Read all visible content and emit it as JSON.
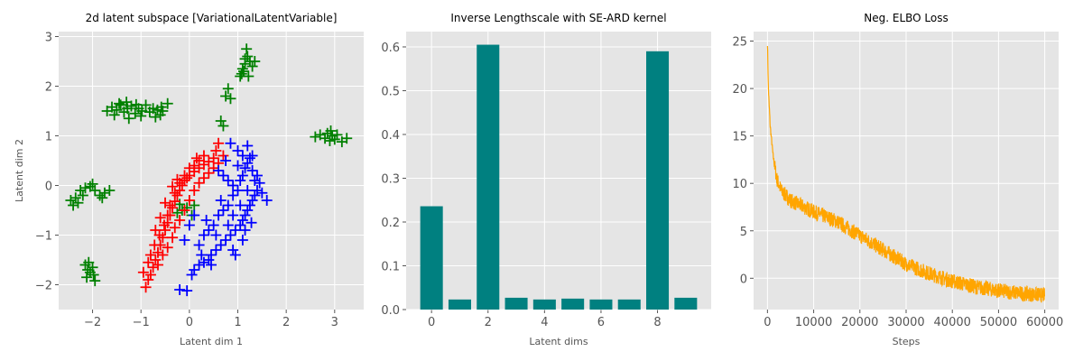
{
  "chart_data": [
    {
      "type": "scatter",
      "title": "2d latent subspace [VariationalLatentVariable]",
      "xlabel": "Latent dim 1",
      "ylabel": "Latent dim 2",
      "xlim": [
        -2.7,
        3.6
      ],
      "ylim": [
        -2.5,
        3.1
      ],
      "xticks": [
        -2,
        -1,
        0,
        1,
        2,
        3
      ],
      "xtick_labels": [
        "−2",
        "−1",
        "0",
        "1",
        "2",
        "3"
      ],
      "yticks": [
        -2,
        -1,
        0,
        1,
        2,
        3
      ],
      "ytick_labels": [
        "−2",
        "−1",
        "0",
        "1",
        "2",
        "3"
      ],
      "marker": "+",
      "grid": true,
      "series": [
        {
          "color": "#008000",
          "points": [
            [
              -1.6,
              1.58
            ],
            [
              -1.5,
              1.52
            ],
            [
              -1.42,
              1.62
            ],
            [
              -1.35,
              1.48
            ],
            [
              -1.28,
              1.55
            ],
            [
              -1.2,
              1.6
            ],
            [
              -1.12,
              1.45
            ],
            [
              -1.05,
              1.55
            ],
            [
              -0.98,
              1.5
            ],
            [
              -0.9,
              1.62
            ],
            [
              -0.82,
              1.48
            ],
            [
              -0.75,
              1.55
            ],
            [
              -0.66,
              1.52
            ],
            [
              -0.58,
              1.58
            ],
            [
              -0.6,
              1.42
            ],
            [
              -1.25,
              1.35
            ],
            [
              -1.45,
              1.65
            ],
            [
              -1.7,
              1.5
            ],
            [
              -0.45,
              1.65
            ],
            [
              -0.55,
              1.5
            ],
            [
              -1.0,
              1.4
            ],
            [
              -1.3,
              1.68
            ],
            [
              -1.1,
              1.63
            ],
            [
              -0.7,
              1.38
            ],
            [
              -1.55,
              1.42
            ],
            [
              1.05,
              2.2
            ],
            [
              1.1,
              2.35
            ],
            [
              1.15,
              2.45
            ],
            [
              1.2,
              2.6
            ],
            [
              1.12,
              2.3
            ],
            [
              1.25,
              2.5
            ],
            [
              1.18,
              2.75
            ],
            [
              1.08,
              2.25
            ],
            [
              1.3,
              2.4
            ],
            [
              1.22,
              2.2
            ],
            [
              1.15,
              2.55
            ],
            [
              1.35,
              2.5
            ],
            [
              0.75,
              1.8
            ],
            [
              0.8,
              1.95
            ],
            [
              0.85,
              1.75
            ],
            [
              0.7,
              1.2
            ],
            [
              0.65,
              1.3
            ],
            [
              2.6,
              0.98
            ],
            [
              2.7,
              1.02
            ],
            [
              2.8,
              0.95
            ],
            [
              2.85,
              1.05
            ],
            [
              2.9,
              0.9
            ],
            [
              2.95,
              1.0
            ],
            [
              3.0,
              0.93
            ],
            [
              3.05,
              1.02
            ],
            [
              3.15,
              0.88
            ],
            [
              3.25,
              0.95
            ],
            [
              2.92,
              1.1
            ],
            [
              -2.45,
              -0.3
            ],
            [
              -2.35,
              -0.25
            ],
            [
              -2.3,
              -0.35
            ],
            [
              -2.2,
              -0.2
            ],
            [
              -2.15,
              -0.05
            ],
            [
              -2.05,
              -0.02
            ],
            [
              -1.95,
              -0.1
            ],
            [
              -1.85,
              -0.2
            ],
            [
              -1.75,
              -0.15
            ],
            [
              -1.65,
              -0.1
            ],
            [
              -2.4,
              -0.4
            ],
            [
              -2.0,
              0.03
            ],
            [
              -1.8,
              -0.25
            ],
            [
              -2.25,
              -0.1
            ],
            [
              -2.15,
              -1.6
            ],
            [
              -2.1,
              -1.7
            ],
            [
              -2.05,
              -1.75
            ],
            [
              -2.0,
              -1.65
            ],
            [
              -2.12,
              -1.85
            ],
            [
              -1.98,
              -1.8
            ],
            [
              -2.08,
              -1.55
            ],
            [
              -1.95,
              -1.92
            ],
            [
              -0.25,
              -0.55
            ],
            [
              -0.15,
              -0.5
            ],
            [
              -0.05,
              -0.45
            ],
            [
              0.05,
              -0.6
            ],
            [
              -0.2,
              -0.38
            ],
            [
              0.1,
              -0.4
            ]
          ]
        },
        {
          "color": "#ff0000",
          "points": [
            [
              -0.9,
              -2.05
            ],
            [
              -0.85,
              -1.9
            ],
            [
              -0.8,
              -1.8
            ],
            [
              -0.75,
              -1.65
            ],
            [
              -0.7,
              -1.5
            ],
            [
              -0.65,
              -1.35
            ],
            [
              -0.6,
              -1.2
            ],
            [
              -0.55,
              -1.05
            ],
            [
              -0.5,
              -0.9
            ],
            [
              -0.45,
              -0.75
            ],
            [
              -0.4,
              -0.6
            ],
            [
              -0.35,
              -0.45
            ],
            [
              -0.3,
              -0.32
            ],
            [
              -0.25,
              -0.2
            ],
            [
              -0.2,
              -0.1
            ],
            [
              -0.15,
              0.0
            ],
            [
              -0.1,
              0.1
            ],
            [
              -0.05,
              0.15
            ],
            [
              0.0,
              0.2
            ],
            [
              0.1,
              0.28
            ],
            [
              0.2,
              0.35
            ],
            [
              0.3,
              0.42
            ],
            [
              0.4,
              0.48
            ],
            [
              0.5,
              0.55
            ],
            [
              0.55,
              0.7
            ],
            [
              0.6,
              0.85
            ],
            [
              -0.65,
              -1.6
            ],
            [
              -0.55,
              -1.4
            ],
            [
              -0.45,
              -1.25
            ],
            [
              -0.35,
              -1.05
            ],
            [
              -0.3,
              -0.85
            ],
            [
              -0.2,
              -0.7
            ],
            [
              -0.1,
              -0.5
            ],
            [
              0.0,
              -0.3
            ],
            [
              0.1,
              -0.1
            ],
            [
              0.2,
              0.05
            ],
            [
              0.3,
              0.15
            ],
            [
              0.4,
              0.25
            ],
            [
              0.5,
              0.35
            ],
            [
              0.6,
              0.45
            ],
            [
              0.7,
              0.6
            ],
            [
              -0.95,
              -1.75
            ],
            [
              -0.85,
              -1.55
            ],
            [
              -0.8,
              -1.4
            ],
            [
              -0.72,
              -1.2
            ],
            [
              -0.62,
              -1.0
            ],
            [
              -0.52,
              -0.8
            ],
            [
              -0.45,
              -0.6
            ],
            [
              -0.4,
              -0.4
            ],
            [
              -0.3,
              -0.15
            ],
            [
              -0.2,
              0.05
            ],
            [
              -0.1,
              0.2
            ],
            [
              0.0,
              0.35
            ],
            [
              0.1,
              0.4
            ],
            [
              0.2,
              0.5
            ],
            [
              0.3,
              0.6
            ],
            [
              -0.35,
              -0.02
            ],
            [
              -0.25,
              0.12
            ],
            [
              0.15,
              0.55
            ],
            [
              -0.5,
              -0.35
            ],
            [
              -0.6,
              -0.65
            ],
            [
              -0.7,
              -0.9
            ]
          ]
        },
        {
          "color": "#0000ff",
          "points": [
            [
              -0.2,
              -2.1
            ],
            [
              -0.05,
              -2.12
            ],
            [
              0.05,
              -1.8
            ],
            [
              0.1,
              -1.7
            ],
            [
              0.2,
              -1.6
            ],
            [
              0.3,
              -1.55
            ],
            [
              0.4,
              -1.5
            ],
            [
              0.45,
              -1.4
            ],
            [
              0.55,
              -1.3
            ],
            [
              0.65,
              -1.2
            ],
            [
              0.75,
              -1.1
            ],
            [
              0.85,
              -1.0
            ],
            [
              0.95,
              -0.9
            ],
            [
              1.05,
              -0.8
            ],
            [
              1.1,
              -0.7
            ],
            [
              1.15,
              -0.6
            ],
            [
              1.2,
              -0.5
            ],
            [
              1.25,
              -0.4
            ],
            [
              1.3,
              -0.3
            ],
            [
              1.35,
              -0.2
            ],
            [
              1.4,
              -0.1
            ],
            [
              0.2,
              -1.2
            ],
            [
              0.3,
              -1.0
            ],
            [
              0.4,
              -0.9
            ],
            [
              0.5,
              -0.8
            ],
            [
              0.6,
              -0.6
            ],
            [
              0.7,
              -0.5
            ],
            [
              0.8,
              -0.4
            ],
            [
              0.9,
              -0.2
            ],
            [
              1.0,
              -0.1
            ],
            [
              1.05,
              0.1
            ],
            [
              1.1,
              0.2
            ],
            [
              1.15,
              0.35
            ],
            [
              1.2,
              0.45
            ],
            [
              1.25,
              0.55
            ],
            [
              1.3,
              0.3
            ],
            [
              1.35,
              0.1
            ],
            [
              1.4,
              0.2
            ],
            [
              1.45,
              0.05
            ],
            [
              1.5,
              -0.15
            ],
            [
              1.6,
              -0.3
            ],
            [
              0.6,
              0.3
            ],
            [
              0.7,
              0.2
            ],
            [
              0.8,
              0.1
            ],
            [
              0.9,
              0.0
            ],
            [
              1.0,
              0.4
            ],
            [
              1.1,
              0.6
            ],
            [
              1.2,
              0.8
            ],
            [
              0.85,
              0.85
            ],
            [
              1.0,
              0.7
            ],
            [
              0.75,
              0.5
            ],
            [
              0.0,
              -0.8
            ],
            [
              0.1,
              -0.6
            ],
            [
              -0.1,
              -1.1
            ],
            [
              0.35,
              -0.7
            ],
            [
              0.55,
              -1.0
            ],
            [
              0.65,
              -0.3
            ],
            [
              0.9,
              -0.6
            ],
            [
              1.05,
              -0.4
            ],
            [
              1.2,
              -0.1
            ],
            [
              1.3,
              0.6
            ],
            [
              0.9,
              -1.3
            ],
            [
              0.45,
              -1.6
            ],
            [
              0.25,
              -1.4
            ],
            [
              1.1,
              -1.1
            ],
            [
              0.8,
              -0.8
            ],
            [
              0.95,
              -1.4
            ],
            [
              1.15,
              -0.9
            ],
            [
              1.28,
              -0.75
            ]
          ]
        }
      ]
    },
    {
      "type": "bar",
      "title": "Inverse Lengthscale with SE-ARD kernel",
      "xlabel": "Latent dims",
      "ylabel": "",
      "categories": [
        0,
        1,
        2,
        3,
        4,
        5,
        6,
        7,
        8,
        9
      ],
      "values": [
        0.236,
        0.023,
        0.605,
        0.027,
        0.023,
        0.025,
        0.023,
        0.023,
        0.59,
        0.027
      ],
      "color": "#008080",
      "xlim": [
        -0.9,
        9.9
      ],
      "ylim": [
        0,
        0.635
      ],
      "xticks": [
        0,
        2,
        4,
        6,
        8
      ],
      "xtick_labels": [
        "0",
        "2",
        "4",
        "6",
        "8"
      ],
      "yticks": [
        0,
        0.1,
        0.2,
        0.3,
        0.4,
        0.5,
        0.6
      ],
      "ytick_labels": [
        "0.0",
        "0.1",
        "0.2",
        "0.3",
        "0.4",
        "0.5",
        "0.6"
      ],
      "grid": true
    },
    {
      "type": "line",
      "title": "Neg. ELBO Loss",
      "xlabel": "Steps",
      "ylabel": "",
      "color": "#ffa500",
      "keypoints": [
        [
          0,
          24.8
        ],
        [
          200,
          20
        ],
        [
          600,
          16
        ],
        [
          1200,
          13
        ],
        [
          2000,
          10.5
        ],
        [
          3000,
          9.2
        ],
        [
          5000,
          8.2
        ],
        [
          10000,
          7.0
        ],
        [
          15000,
          6.0
        ],
        [
          20000,
          4.5
        ],
        [
          25000,
          3.0
        ],
        [
          30000,
          1.5
        ],
        [
          35000,
          0.5
        ],
        [
          40000,
          -0.3
        ],
        [
          45000,
          -0.9
        ],
        [
          50000,
          -1.3
        ],
        [
          55000,
          -1.6
        ],
        [
          60000,
          -1.8
        ]
      ],
      "noise_band": 0.8,
      "xlim": [
        -3000,
        63000
      ],
      "ylim": [
        -3.3,
        26
      ],
      "xticks": [
        0,
        10000,
        20000,
        30000,
        40000,
        50000,
        60000
      ],
      "xtick_labels": [
        "0",
        "10000",
        "20000",
        "30000",
        "40000",
        "50000",
        "60000"
      ],
      "yticks": [
        0,
        5,
        10,
        15,
        20,
        25
      ],
      "ytick_labels": [
        "0",
        "5",
        "10",
        "15",
        "20",
        "25"
      ],
      "grid": true
    }
  ]
}
